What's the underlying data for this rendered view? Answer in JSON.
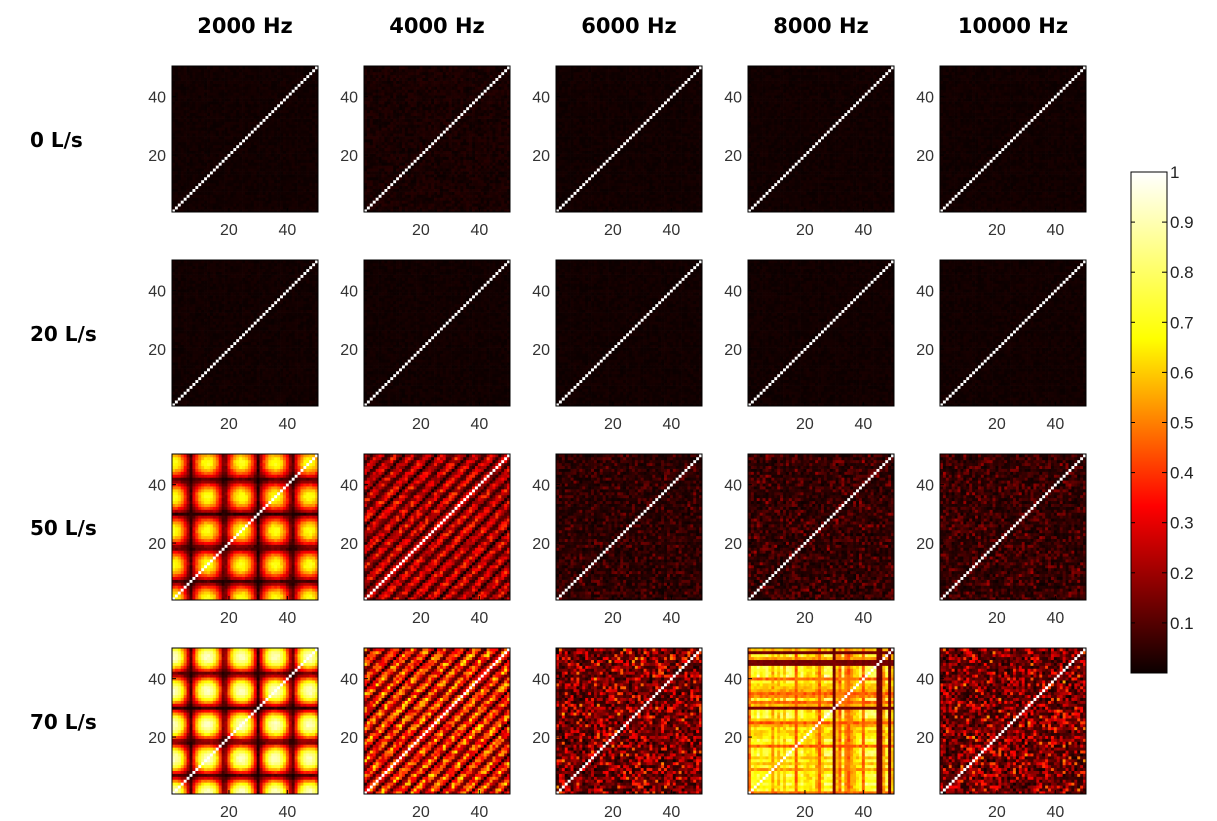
{
  "chart_data": {
    "type": "heatmap",
    "title": "",
    "columns": [
      "2000 Hz",
      "4000 Hz",
      "6000 Hz",
      "8000 Hz",
      "10000 Hz"
    ],
    "rows": [
      "0 L/s",
      "20 L/s",
      "50 L/s",
      "70 L/s"
    ],
    "matrix_size": 50,
    "x_ticks": [
      20,
      40
    ],
    "y_ticks": [
      20,
      40
    ],
    "xlim": [
      1,
      50
    ],
    "ylim": [
      1,
      50
    ],
    "colormap": "hot",
    "colorbar": {
      "min": 0,
      "max": 1,
      "ticks": [
        0.1,
        0.2,
        0.3,
        0.4,
        0.5,
        0.6,
        0.7,
        0.8,
        0.9,
        1
      ],
      "tick_labels": [
        "0.1",
        "0.2",
        "0.3",
        "0.4",
        "0.5",
        "0.6",
        "0.7",
        "0.8",
        "0.9",
        "1"
      ]
    },
    "diagonal_value": 1,
    "panels": [
      {
        "row": "0 L/s",
        "col": "2000 Hz",
        "pattern": "near-zero",
        "mean_offdiag": 0.02
      },
      {
        "row": "0 L/s",
        "col": "4000 Hz",
        "pattern": "near-zero",
        "mean_offdiag": 0.04
      },
      {
        "row": "0 L/s",
        "col": "6000 Hz",
        "pattern": "near-zero",
        "mean_offdiag": 0.02
      },
      {
        "row": "0 L/s",
        "col": "8000 Hz",
        "pattern": "near-zero",
        "mean_offdiag": 0.02
      },
      {
        "row": "0 L/s",
        "col": "10000 Hz",
        "pattern": "near-zero",
        "mean_offdiag": 0.02
      },
      {
        "row": "20 L/s",
        "col": "2000 Hz",
        "pattern": "near-zero",
        "mean_offdiag": 0.02
      },
      {
        "row": "20 L/s",
        "col": "4000 Hz",
        "pattern": "near-zero",
        "mean_offdiag": 0.02
      },
      {
        "row": "20 L/s",
        "col": "6000 Hz",
        "pattern": "near-zero",
        "mean_offdiag": 0.02
      },
      {
        "row": "20 L/s",
        "col": "8000 Hz",
        "pattern": "near-zero",
        "mean_offdiag": 0.02
      },
      {
        "row": "20 L/s",
        "col": "10000 Hz",
        "pattern": "near-zero",
        "mean_offdiag": 0.02
      },
      {
        "row": "50 L/s",
        "col": "2000 Hz",
        "pattern": "periodic-blobs",
        "mean_offdiag": 0.45
      },
      {
        "row": "50 L/s",
        "col": "4000 Hz",
        "pattern": "diagonal-bands",
        "mean_offdiag": 0.3
      },
      {
        "row": "50 L/s",
        "col": "6000 Hz",
        "pattern": "noise",
        "mean_offdiag": 0.08
      },
      {
        "row": "50 L/s",
        "col": "8000 Hz",
        "pattern": "noise",
        "mean_offdiag": 0.1
      },
      {
        "row": "50 L/s",
        "col": "10000 Hz",
        "pattern": "noise",
        "mean_offdiag": 0.1
      },
      {
        "row": "70 L/s",
        "col": "2000 Hz",
        "pattern": "periodic-blobs",
        "mean_offdiag": 0.6
      },
      {
        "row": "70 L/s",
        "col": "4000 Hz",
        "pattern": "diagonal-bands",
        "mean_offdiag": 0.45
      },
      {
        "row": "70 L/s",
        "col": "6000 Hz",
        "pattern": "noise",
        "mean_offdiag": 0.25
      },
      {
        "row": "70 L/s",
        "col": "8000 Hz",
        "pattern": "stripes",
        "mean_offdiag": 0.75
      },
      {
        "row": "70 L/s",
        "col": "10000 Hz",
        "pattern": "noise",
        "mean_offdiag": 0.25
      }
    ]
  }
}
